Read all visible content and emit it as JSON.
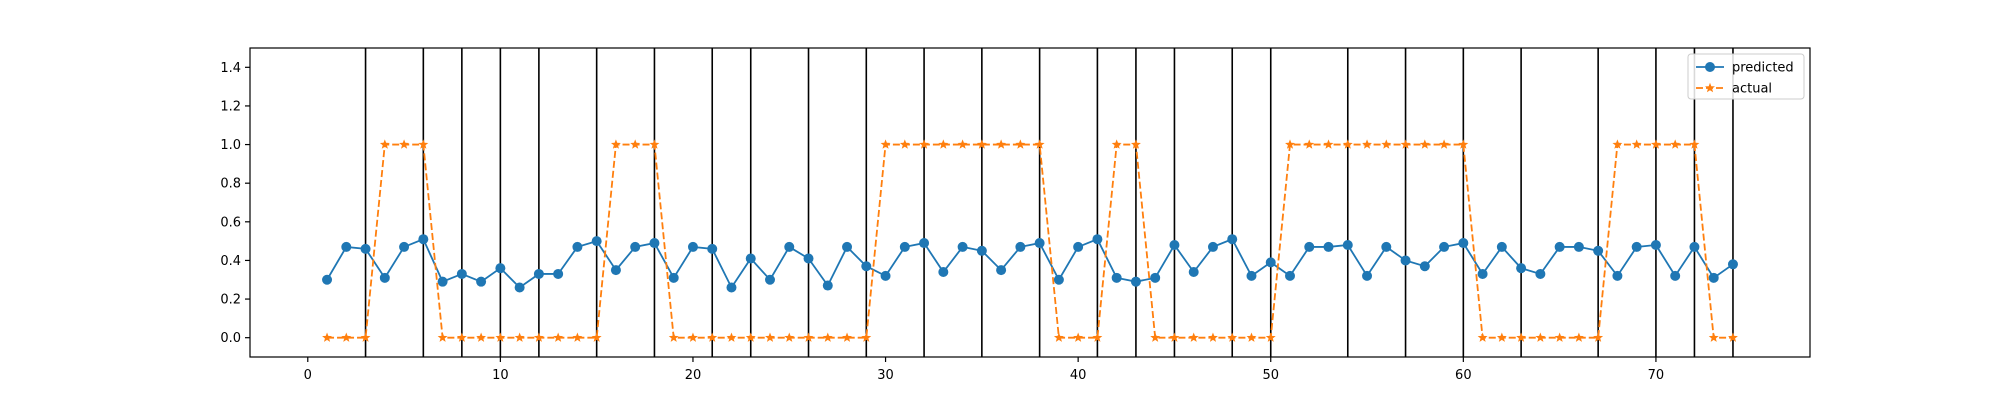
{
  "chart_data": {
    "type": "line",
    "title": "",
    "xlabel": "",
    "ylabel": "",
    "xlim": [
      -3,
      78
    ],
    "ylim": [
      -0.1,
      1.5
    ],
    "xticks": [
      0,
      10,
      20,
      30,
      40,
      50,
      60,
      70
    ],
    "yticks": [
      0.0,
      0.2,
      0.4,
      0.6,
      0.8,
      1.0,
      1.2,
      1.4
    ],
    "xtick_labels": [
      "0",
      "10",
      "20",
      "30",
      "40",
      "50",
      "60",
      "70"
    ],
    "ytick_labels": [
      "0.0",
      "0.2",
      "0.4",
      "0.6",
      "0.8",
      "1.0",
      "1.2",
      "1.4"
    ],
    "grid": false,
    "legend_position": "top-right",
    "x": [
      1,
      2,
      3,
      4,
      5,
      6,
      7,
      8,
      9,
      10,
      11,
      12,
      13,
      14,
      15,
      16,
      17,
      18,
      19,
      20,
      21,
      22,
      23,
      24,
      25,
      26,
      27,
      28,
      29,
      30,
      31,
      32,
      33,
      34,
      35,
      36,
      37,
      38,
      39,
      40,
      41,
      42,
      43,
      44,
      45,
      46,
      47,
      48,
      49,
      50,
      51,
      52,
      53,
      54,
      55,
      56,
      57,
      58,
      59,
      60,
      61,
      62,
      63,
      64,
      65,
      66,
      67,
      68,
      69,
      70,
      71,
      72,
      73,
      74
    ],
    "series": [
      {
        "name": "predicted",
        "color": "#1f77b4",
        "linestyle": "solid",
        "marker": "circle",
        "values": [
          0.3,
          0.47,
          0.46,
          0.31,
          0.47,
          0.51,
          0.29,
          0.33,
          0.29,
          0.36,
          0.26,
          0.33,
          0.33,
          0.47,
          0.5,
          0.35,
          0.47,
          0.49,
          0.31,
          0.47,
          0.46,
          0.26,
          0.41,
          0.3,
          0.47,
          0.41,
          0.27,
          0.47,
          0.37,
          0.32,
          0.47,
          0.49,
          0.34,
          0.47,
          0.45,
          0.35,
          0.47,
          0.49,
          0.3,
          0.47,
          0.51,
          0.31,
          0.29,
          0.31,
          0.48,
          0.34,
          0.47,
          0.51,
          0.32,
          0.39,
          0.32,
          0.47,
          0.47,
          0.48,
          0.32,
          0.47,
          0.4,
          0.37,
          0.47,
          0.49,
          0.33,
          0.47,
          0.36,
          0.33,
          0.47,
          0.47,
          0.45,
          0.32,
          0.47,
          0.48,
          0.32,
          0.47,
          0.31,
          0.38
        ]
      },
      {
        "name": "actual",
        "color": "#ff7f0e",
        "linestyle": "dashed",
        "marker": "star",
        "values": [
          0,
          0,
          0,
          1,
          1,
          1,
          0,
          0,
          0,
          0,
          0,
          0,
          0,
          0,
          0,
          1,
          1,
          1,
          0,
          0,
          0,
          0,
          0,
          0,
          0,
          0,
          0,
          0,
          0,
          1,
          1,
          1,
          1,
          1,
          1,
          1,
          1,
          1,
          0,
          0,
          0,
          1,
          1,
          0,
          0,
          0,
          0,
          0,
          0,
          0,
          1,
          1,
          1,
          1,
          1,
          1,
          1,
          1,
          1,
          1,
          0,
          0,
          0,
          0,
          0,
          0,
          0,
          1,
          1,
          1,
          1,
          1,
          0,
          0
        ]
      }
    ],
    "vertical_lines": {
      "color": "#000000",
      "x": [
        3,
        6,
        8,
        10,
        12,
        15,
        18,
        21,
        23,
        26,
        29,
        32,
        35,
        38,
        41,
        43,
        45,
        48,
        50,
        54,
        57,
        60,
        63,
        67,
        70,
        72,
        74
      ]
    }
  }
}
